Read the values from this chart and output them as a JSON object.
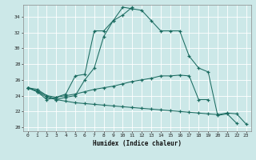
{
  "xlabel": "Humidex (Indice chaleur)",
  "bg_color": "#cce8e8",
  "grid_color": "#ffffff",
  "line_color": "#1a6b60",
  "marker": "+",
  "xlim": [
    -0.5,
    23.5
  ],
  "ylim": [
    19.5,
    35.5
  ],
  "yticks": [
    20,
    22,
    24,
    26,
    28,
    30,
    32,
    34
  ],
  "xticks": [
    0,
    1,
    2,
    3,
    4,
    5,
    6,
    7,
    8,
    9,
    10,
    11,
    12,
    13,
    14,
    15,
    16,
    17,
    18,
    19,
    20,
    21,
    22,
    23
  ],
  "series1_x": [
    0,
    1,
    2,
    3,
    4,
    5,
    6,
    7,
    8,
    9,
    10,
    11,
    12,
    13,
    14,
    15,
    16,
    17,
    18,
    19,
    20,
    21,
    22
  ],
  "series1_y": [
    25.0,
    24.8,
    24.0,
    23.8,
    24.2,
    26.5,
    26.7,
    32.2,
    32.2,
    33.5,
    35.2,
    35.0,
    34.8,
    33.5,
    32.2,
    32.2,
    32.2,
    29.0,
    27.5,
    27.0,
    21.5,
    21.7,
    20.5
  ],
  "series2_x": [
    0,
    1,
    2,
    3,
    4,
    5,
    6,
    7,
    8,
    9,
    10,
    11
  ],
  "series2_y": [
    25.0,
    24.6,
    24.0,
    23.5,
    23.8,
    24.0,
    26.0,
    27.5,
    31.5,
    33.5,
    34.2,
    35.2
  ],
  "series3_x": [
    0,
    1,
    2,
    3,
    4,
    5,
    6,
    7,
    8,
    9,
    10,
    11,
    12,
    13,
    14,
    15,
    16,
    17,
    18,
    19
  ],
  "series3_y": [
    25.0,
    24.5,
    23.5,
    23.8,
    24.0,
    24.2,
    24.5,
    24.8,
    25.0,
    25.2,
    25.5,
    25.8,
    26.0,
    26.2,
    26.5,
    26.5,
    26.6,
    26.5,
    23.5,
    23.5
  ],
  "series4_x": [
    0,
    1,
    2,
    3,
    4,
    5,
    6,
    7,
    8,
    9,
    10,
    11,
    12,
    13,
    14,
    15,
    16,
    17,
    18,
    19,
    20,
    21,
    22,
    23
  ],
  "series4_y": [
    25.0,
    24.5,
    23.8,
    23.5,
    23.3,
    23.1,
    23.0,
    22.9,
    22.8,
    22.7,
    22.6,
    22.5,
    22.4,
    22.3,
    22.2,
    22.1,
    22.0,
    21.9,
    21.8,
    21.7,
    21.6,
    21.8,
    21.7,
    20.4
  ]
}
